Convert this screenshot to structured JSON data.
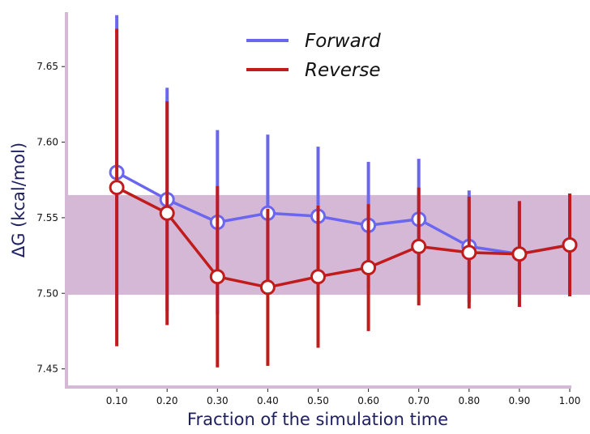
{
  "chart_data": {
    "type": "line",
    "title": "",
    "xlabel": "Fraction of the simulation time",
    "ylabel": "ΔG (kcal/mol)",
    "x": [
      0.1,
      0.2,
      0.3,
      0.4,
      0.5,
      0.6,
      0.7,
      0.8,
      0.9,
      1.0
    ],
    "x_tick_labels": [
      "0.10",
      "0.20",
      "0.30",
      "0.40",
      "0.50",
      "0.60",
      "0.70",
      "0.80",
      "0.90",
      "1.00"
    ],
    "y_ticks": [
      7.45,
      7.5,
      7.55,
      7.6,
      7.65
    ],
    "y_tick_labels": [
      "7.45",
      "7.50",
      "7.55",
      "7.60",
      "7.65"
    ],
    "xlim": [
      0.0,
      1.0
    ],
    "ylim": [
      7.438,
      7.686
    ],
    "band": {
      "low": 7.499,
      "high": 7.565,
      "color": "#d5b8d5"
    },
    "legend_position": "top-center",
    "series": [
      {
        "name": "Forward",
        "color": "#6b66f0",
        "values": [
          7.58,
          7.562,
          7.547,
          7.553,
          7.551,
          7.545,
          7.549,
          7.531,
          7.526,
          7.532
        ],
        "errors": [
          0.104,
          0.074,
          0.061,
          0.052,
          0.046,
          0.042,
          0.04,
          0.037,
          0.035,
          0.034
        ]
      },
      {
        "name": "Reverse",
        "color": "#c01c1c",
        "values": [
          7.57,
          7.553,
          7.511,
          7.504,
          7.511,
          7.517,
          7.531,
          7.527,
          7.526,
          7.532
        ],
        "errors": [
          0.105,
          0.074,
          0.06,
          0.052,
          0.047,
          0.042,
          0.039,
          0.037,
          0.035,
          0.034
        ]
      }
    ],
    "colors": {
      "axis": "#d5b8d5",
      "label": "#1f2060"
    }
  }
}
